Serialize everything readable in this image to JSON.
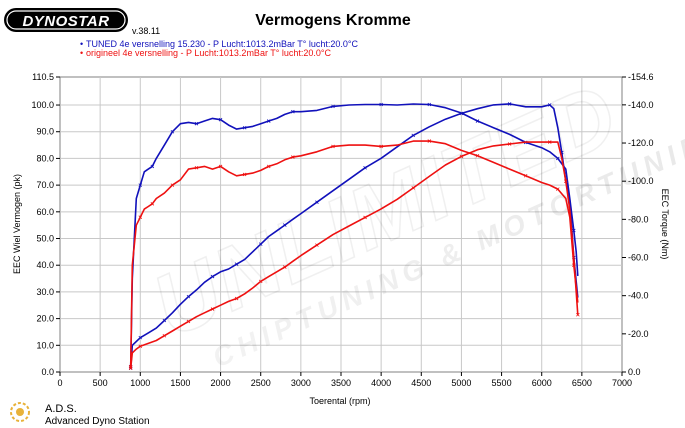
{
  "brand": {
    "logo_text": "DYNOSTAR",
    "version_text": "v.38.11"
  },
  "footer": {
    "abbrev": "A.D.S.",
    "name": "Advanced Dyno Station"
  },
  "watermark": {
    "line1": "UNLIMITED",
    "line2": "CHIPTUNING & MOTORTUNING"
  },
  "colors": {
    "tuned": "#1111bb",
    "original": "#ee1111",
    "grid": "#c8c8c8",
    "plot_bg": "#ffffff"
  },
  "chart_data": {
    "type": "line",
    "title": "Vermogens Kromme",
    "xlabel": "Toerental (rpm)",
    "ylabel": "EEC Wiel Vermogen (pk)",
    "y2label": "EEC Torque (Nm)",
    "xlim": [
      0,
      7000
    ],
    "ylim": [
      0,
      110.5
    ],
    "y2lim": [
      0,
      154.6
    ],
    "grid": true,
    "legend_position": "top",
    "x_ticks": [
      "0",
      "500",
      "1000",
      "1500",
      "2000",
      "2500",
      "3000",
      "3500",
      "4000",
      "4500",
      "5000",
      "5500",
      "6000",
      "6500",
      "7000"
    ],
    "y_ticks": [
      "0.0",
      "10.0",
      "20.0",
      "30.0",
      "40.0",
      "50.0",
      "60.0",
      "70.0",
      "80.0",
      "90.0",
      "100.0",
      "110.5"
    ],
    "y2_ticks": [
      "0.0",
      "-20.0",
      "-40.0",
      "-60.0",
      "-80.0",
      "-100.0",
      "-120.0",
      "-140.0",
      "-154.6"
    ],
    "y2_tick_values": [
      0,
      20,
      40,
      60,
      80,
      100,
      120,
      140,
      154.6
    ],
    "series": [
      {
        "name": "TUNED 4e versnelling  15.230  - P Lucht:1013.2mBar T° lucht:20.0°C",
        "key": "tuned",
        "power_x": [
          880,
          900,
          950,
          1000,
          1050,
          1100,
          1150,
          1200,
          1300,
          1400,
          1500,
          1600,
          1700,
          1800,
          1900,
          2000,
          2100,
          2200,
          2300,
          2400,
          2500,
          2600,
          2700,
          2800,
          2900,
          3000,
          3200,
          3400,
          3600,
          3800,
          4000,
          4200,
          4400,
          4600,
          4800,
          5000,
          5200,
          5400,
          5600,
          5800,
          6000,
          6100,
          6200,
          6300,
          6350,
          6400,
          6430,
          6450
        ],
        "power_y": [
          2,
          35,
          65,
          70,
          75,
          76,
          77,
          80,
          85,
          90,
          93,
          93.5,
          93,
          94,
          95,
          94.5,
          92.5,
          91,
          91.5,
          92,
          93,
          94,
          95,
          96.5,
          97.5,
          97.5,
          98,
          99.5,
          100,
          100.2,
          100.2,
          100,
          100.4,
          100.2,
          99,
          97,
          94,
          91.5,
          89,
          86,
          84,
          82.5,
          80,
          76,
          65,
          53,
          45,
          36
        ],
        "torque_x": [
          880,
          900,
          950,
          1000,
          1100,
          1200,
          1300,
          1400,
          1500,
          1600,
          1700,
          1800,
          1900,
          2000,
          2100,
          2200,
          2300,
          2400,
          2500,
          2600,
          2700,
          2800,
          2900,
          3000,
          3200,
          3400,
          3600,
          3800,
          4000,
          4200,
          4400,
          4600,
          4800,
          5000,
          5200,
          5400,
          5600,
          5800,
          6000,
          6100,
          6150,
          6200,
          6250,
          6300,
          6350,
          6400,
          6450
        ],
        "torque_y": [
          2,
          14,
          16,
          18,
          20.5,
          23,
          27,
          31,
          35.5,
          39.5,
          43,
          47,
          50,
          52.5,
          54,
          56.5,
          59,
          63,
          67,
          71,
          74,
          77,
          80,
          83,
          89,
          95,
          101,
          107,
          112,
          118,
          124,
          128.5,
          132.5,
          135.5,
          138,
          140,
          140.5,
          139,
          139,
          140,
          138,
          128,
          115,
          100,
          90,
          60,
          39
        ]
      },
      {
        "name": "origineel 4e versnelling  - P Lucht:1013.2mBar T° lucht:20.0°C",
        "key": "original",
        "power_x": [
          880,
          900,
          950,
          1000,
          1050,
          1100,
          1150,
          1200,
          1300,
          1400,
          1500,
          1600,
          1700,
          1800,
          1900,
          2000,
          2100,
          2200,
          2300,
          2400,
          2500,
          2600,
          2700,
          2800,
          2900,
          3000,
          3200,
          3400,
          3600,
          3800,
          4000,
          4200,
          4400,
          4600,
          4800,
          5000,
          5200,
          5400,
          5600,
          5800,
          6000,
          6100,
          6200,
          6300,
          6350,
          6400,
          6450
        ],
        "power_y": [
          2,
          40,
          55,
          58,
          61,
          62,
          63,
          65,
          67,
          70,
          72,
          76,
          76.5,
          77,
          76,
          77,
          75,
          73.5,
          74,
          74.5,
          75.5,
          77,
          78,
          79.5,
          80.5,
          81,
          82.5,
          84.5,
          85,
          85,
          84.5,
          85,
          86.5,
          86.5,
          85.5,
          83,
          81,
          78.5,
          76,
          73.5,
          71,
          70,
          68.5,
          65,
          58,
          40,
          26
        ],
        "torque_x": [
          880,
          900,
          950,
          1000,
          1100,
          1200,
          1300,
          1400,
          1500,
          1600,
          1700,
          1800,
          1900,
          2000,
          2100,
          2200,
          2300,
          2400,
          2500,
          2600,
          2700,
          2800,
          2900,
          3000,
          3200,
          3400,
          3600,
          3800,
          4000,
          4200,
          4400,
          4600,
          4800,
          5000,
          5200,
          5400,
          5600,
          5800,
          6000,
          6100,
          6200,
          6250,
          6300,
          6350,
          6400,
          6450
        ],
        "torque_y": [
          2,
          10,
          12,
          13.5,
          15,
          16.5,
          19,
          21.5,
          24,
          26.5,
          29,
          31,
          33,
          35,
          37,
          38.5,
          41,
          44,
          47.5,
          50,
          52.5,
          55,
          58,
          61,
          66.5,
          72,
          76.5,
          81,
          85.5,
          90.5,
          96.5,
          102.5,
          108.5,
          113,
          116.5,
          118.5,
          119.5,
          120.5,
          120.5,
          120.5,
          120.5,
          112,
          100,
          85,
          60,
          30
        ]
      }
    ]
  }
}
